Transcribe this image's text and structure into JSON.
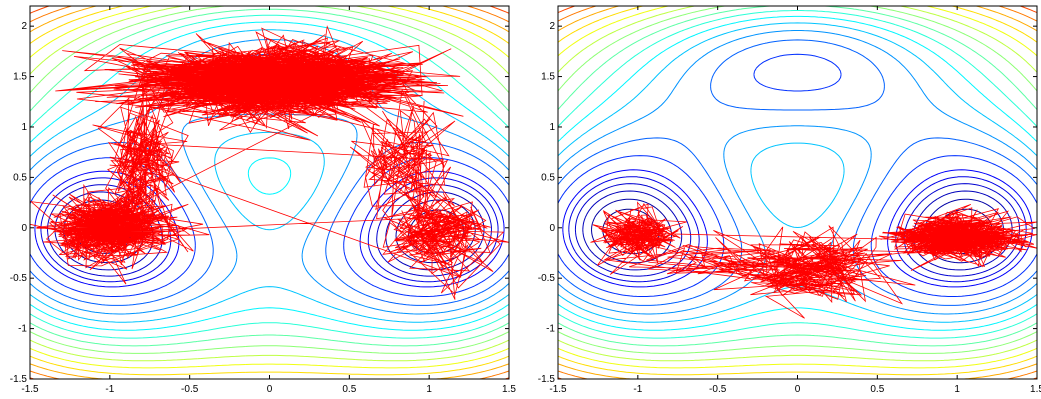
{
  "chart_data": [
    {
      "type": "contour",
      "title": "",
      "xlabel": "",
      "ylabel": "",
      "xlim": [
        -1.5,
        1.5
      ],
      "ylim": [
        -1.5,
        2.2
      ],
      "xticks": [
        "-1.5",
        "-1",
        "-0.5",
        "0",
        "0.5",
        "1",
        "1.5"
      ],
      "yticks": [
        "-1.5",
        "-1",
        "-0.5",
        "0",
        "0.5",
        "1",
        "1.5",
        "2"
      ],
      "colormap": [
        "#00008f",
        "#0000ff",
        "#0080ff",
        "#00ffff",
        "#80ff80",
        "#ffff00",
        "#ff8000",
        "#ff0000",
        "#800000"
      ],
      "contour_levels": [
        -3.8,
        -3.6,
        -3.4,
        -3.2,
        -3.0,
        -2.8,
        -2.4,
        -2.0,
        -1.6,
        -1.2,
        -0.8,
        -0.4,
        0.0,
        0.4,
        0.8,
        1.2,
        1.6,
        2.0,
        2.4,
        2.8,
        3.2,
        3.6,
        4.0,
        4.4
      ],
      "trajectory": {
        "color": "#ff0000",
        "description_clusters": [
          {
            "cx": 0.0,
            "cy": 1.45,
            "sx": 0.42,
            "sy": 0.18,
            "weight": 0.55
          },
          {
            "cx": -1.0,
            "cy": 0.0,
            "sx": 0.18,
            "sy": 0.16,
            "weight": 0.25
          },
          {
            "cx": 1.05,
            "cy": -0.05,
            "sx": 0.17,
            "sy": 0.2,
            "weight": 0.08
          },
          {
            "cx": -0.8,
            "cy": 0.7,
            "sx": 0.12,
            "sy": 0.3,
            "weight": 0.07
          },
          {
            "cx": 0.85,
            "cy": 0.6,
            "sx": 0.15,
            "sy": 0.3,
            "weight": 0.05
          }
        ]
      }
    },
    {
      "type": "contour",
      "title": "",
      "xlabel": "",
      "ylabel": "",
      "xlim": [
        -1.5,
        1.5
      ],
      "ylim": [
        -1.5,
        2.2
      ],
      "xticks": [
        "-1.5",
        "-1",
        "-0.5",
        "0",
        "0.5",
        "1",
        "1.5"
      ],
      "yticks": [
        "-1.5",
        "-1",
        "-0.5",
        "0",
        "0.5",
        "1",
        "1.5",
        "2"
      ],
      "colormap": [
        "#00008f",
        "#0000ff",
        "#0080ff",
        "#00ffff",
        "#80ff80",
        "#ffff00",
        "#ff8000",
        "#ff0000",
        "#800000"
      ],
      "contour_levels": [
        -3.8,
        -3.6,
        -3.4,
        -3.2,
        -3.0,
        -2.8,
        -2.4,
        -2.0,
        -1.6,
        -1.2,
        -0.8,
        -0.4,
        0.0,
        0.4,
        0.8,
        1.2,
        1.6,
        2.0,
        2.4,
        2.8,
        3.2,
        3.6,
        4.0,
        4.4
      ],
      "trajectory": {
        "color": "#ff0000",
        "description_clusters": [
          {
            "cx": 1.0,
            "cy": -0.1,
            "sx": 0.2,
            "sy": 0.1,
            "weight": 0.55
          },
          {
            "cx": -1.0,
            "cy": -0.05,
            "sx": 0.12,
            "sy": 0.12,
            "weight": 0.2
          },
          {
            "cx": 0.1,
            "cy": -0.4,
            "sx": 0.25,
            "sy": 0.18,
            "weight": 0.2
          },
          {
            "cx": -0.5,
            "cy": -0.35,
            "sx": 0.25,
            "sy": 0.1,
            "weight": 0.05
          }
        ]
      }
    }
  ]
}
